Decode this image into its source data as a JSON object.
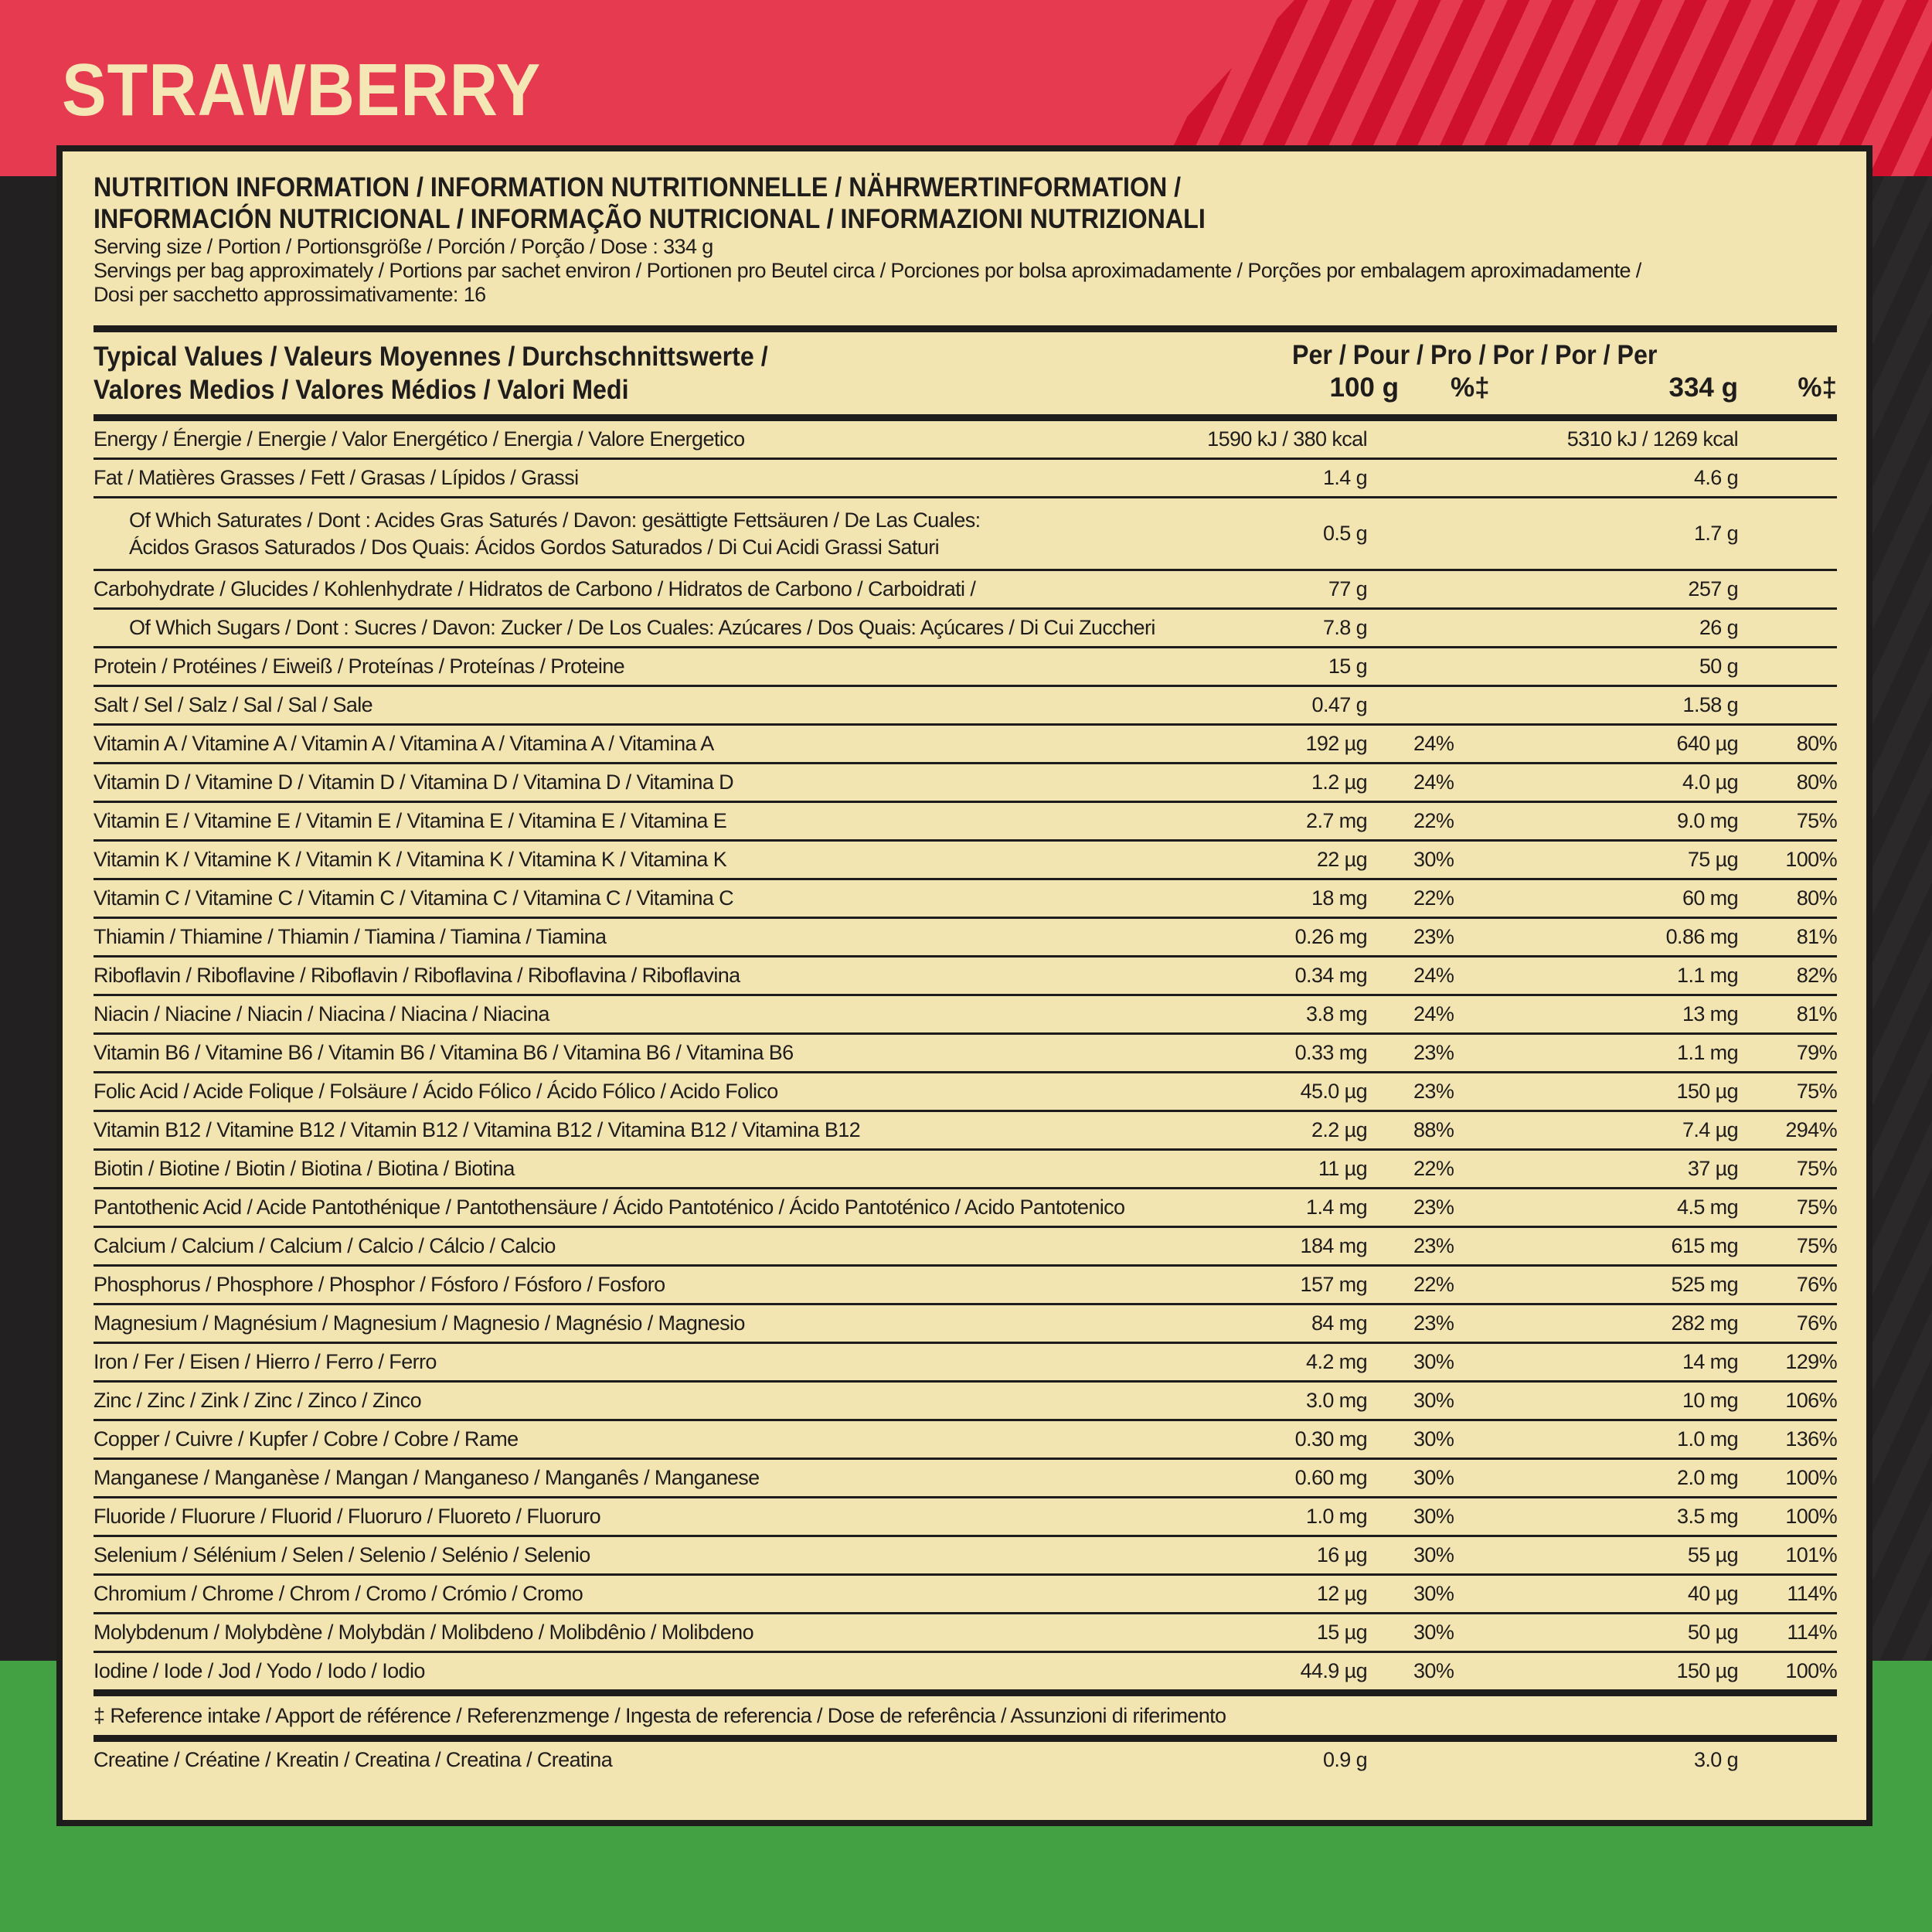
{
  "flavor": "STRAWBERRY",
  "colors": {
    "red": "#e63a50",
    "dark_red": "#cf112e",
    "dark": "#232021",
    "green": "#43a043",
    "cream": "#f3e5b2"
  },
  "title_line1": "NUTRITION INFORMATION / INFORMATION NUTRITIONNELLE / NÄHRWERTINFORMATION /",
  "title_line2": "INFORMACIÓN NUTRICIONAL / INFORMAÇÃO NUTRICIONAL / INFORMAZIONI NUTRIZIONALI",
  "serving_size": "Serving size / Portion / Portionsgröße / Porción / Porção / Dose : 334 g",
  "servings_line1": "Servings per bag approximately / Portions par sachet environ / Portionen pro Beutel circa / Porciones por bolsa aproximadamente / Porções por embalagem aproximadamente /",
  "servings_line2": "Dosi per sacchetto approssimativamente: 16",
  "header": {
    "typical_line1": "Typical Values / Valeurs Moyennes / Durchschnittswerte /",
    "typical_line2": "Valores Medios / Valores Médios / Valori Medi",
    "per": "Per / Pour / Pro / Por / Por / Per",
    "col1": "100 g",
    "col2": "%‡",
    "col3": "334 g",
    "col4": "%‡"
  },
  "energy": {
    "label": "Energy / Énergie / Energie / Valor Energético / Energia / Valore Energetico",
    "per100": "1590 kJ / 380 kcal",
    "per334": "5310 kJ / 1269 kcal"
  },
  "rows": [
    {
      "label": "Fat / Matières Grasses / Fett / Grasas / Lípidos / Grassi",
      "per100": "1.4 g",
      "pct100": "",
      "per334": "4.6 g",
      "pct334": ""
    },
    {
      "label": "Of Which Saturates / Dont : Acides Gras Saturés / Davon: gesättigte Fettsäuren / De Las Cuales:",
      "label2": "Ácidos Grasos Saturados / Dos Quais: Ácidos Gordos Saturados / Di Cui Acidi Grassi Saturi",
      "per100": "0.5 g",
      "pct100": "",
      "per334": "1.7 g",
      "pct334": "",
      "indent": true
    },
    {
      "label": "Carbohydrate / Glucides / Kohlenhydrate / Hidratos de Carbono / Hidratos de Carbono / Carboidrati /",
      "per100": "77 g",
      "pct100": "",
      "per334": "257 g",
      "pct334": ""
    },
    {
      "label": "Of Which Sugars / Dont : Sucres / Davon: Zucker / De Los Cuales: Azúcares / Dos Quais: Açúcares / Di Cui Zuccheri",
      "per100": "7.8 g",
      "pct100": "",
      "per334": "26 g",
      "pct334": "",
      "indent": true
    },
    {
      "label": "Protein / Protéines / Eiweiß / Proteínas / Proteínas / Proteine",
      "per100": "15 g",
      "pct100": "",
      "per334": "50 g",
      "pct334": ""
    },
    {
      "label": "Salt / Sel / Salz / Sal / Sal / Sale",
      "per100": "0.47 g",
      "pct100": "",
      "per334": "1.58 g",
      "pct334": ""
    },
    {
      "label": "Vitamin A / Vitamine A / Vitamin A / Vitamina A / Vitamina A / Vitamina A",
      "per100": "192 µg",
      "pct100": "24%",
      "per334": "640 µg",
      "pct334": "80%"
    },
    {
      "label": "Vitamin D / Vitamine D / Vitamin D / Vitamina D / Vitamina D / Vitamina D",
      "per100": "1.2 µg",
      "pct100": "24%",
      "per334": "4.0 µg",
      "pct334": "80%"
    },
    {
      "label": "Vitamin E / Vitamine E / Vitamin E / Vitamina E / Vitamina E / Vitamina E",
      "per100": "2.7 mg",
      "pct100": "22%",
      "per334": "9.0 mg",
      "pct334": "75%"
    },
    {
      "label": "Vitamin K / Vitamine K / Vitamin K / Vitamina K / Vitamina K / Vitamina K",
      "per100": "22 µg",
      "pct100": "30%",
      "per334": "75 µg",
      "pct334": "100%"
    },
    {
      "label": "Vitamin C / Vitamine C / Vitamin C / Vitamina C / Vitamina C / Vitamina C",
      "per100": "18 mg",
      "pct100": "22%",
      "per334": "60 mg",
      "pct334": "80%"
    },
    {
      "label": "Thiamin / Thiamine / Thiamin / Tiamina / Tiamina / Tiamina",
      "per100": "0.26 mg",
      "pct100": "23%",
      "per334": "0.86 mg",
      "pct334": "81%"
    },
    {
      "label": "Riboflavin / Riboflavine / Riboflavin / Riboflavina / Riboflavina / Riboflavina",
      "per100": "0.34 mg",
      "pct100": "24%",
      "per334": "1.1 mg",
      "pct334": "82%"
    },
    {
      "label": "Niacin / Niacine / Niacin / Niacina / Niacina / Niacina",
      "per100": "3.8 mg",
      "pct100": "24%",
      "per334": "13 mg",
      "pct334": "81%"
    },
    {
      "label": "Vitamin B6 / Vitamine B6 / Vitamin B6 / Vitamina B6 / Vitamina B6 / Vitamina B6",
      "per100": "0.33 mg",
      "pct100": "23%",
      "per334": "1.1 mg",
      "pct334": "79%"
    },
    {
      "label": "Folic Acid / Acide Folique / Folsäure / Ácido Fólico / Ácido Fólico / Acido Folico",
      "per100": "45.0 µg",
      "pct100": "23%",
      "per334": "150 µg",
      "pct334": "75%"
    },
    {
      "label": "Vitamin B12 / Vitamine B12 / Vitamin B12 / Vitamina B12 / Vitamina B12 / Vitamina B12",
      "per100": "2.2 µg",
      "pct100": "88%",
      "per334": "7.4 µg",
      "pct334": "294%"
    },
    {
      "label": "Biotin / Biotine / Biotin / Biotina / Biotina / Biotina",
      "per100": "11 µg",
      "pct100": "22%",
      "per334": "37 µg",
      "pct334": "75%"
    },
    {
      "label": "Pantothenic Acid / Acide Pantothénique / Pantothensäure / Ácido Pantoténico / Ácido Pantoténico / Acido Pantotenico",
      "per100": "1.4 mg",
      "pct100": "23%",
      "per334": "4.5 mg",
      "pct334": "75%"
    },
    {
      "label": "Calcium / Calcium / Calcium / Calcio / Cálcio / Calcio",
      "per100": "184 mg",
      "pct100": "23%",
      "per334": "615 mg",
      "pct334": "75%"
    },
    {
      "label": "Phosphorus / Phosphore / Phosphor / Fósforo / Fósforo / Fosforo",
      "per100": "157 mg",
      "pct100": "22%",
      "per334": "525 mg",
      "pct334": "76%"
    },
    {
      "label": "Magnesium / Magnésium / Magnesium / Magnesio / Magnésio / Magnesio",
      "per100": "84 mg",
      "pct100": "23%",
      "per334": "282 mg",
      "pct334": "76%"
    },
    {
      "label": "Iron / Fer / Eisen / Hierro / Ferro / Ferro",
      "per100": "4.2 mg",
      "pct100": "30%",
      "per334": "14 mg",
      "pct334": "129%"
    },
    {
      "label": "Zinc / Zinc / Zink / Zinc / Zinco / Zinco",
      "per100": "3.0 mg",
      "pct100": "30%",
      "per334": "10 mg",
      "pct334": "106%"
    },
    {
      "label": "Copper / Cuivre / Kupfer / Cobre / Cobre / Rame",
      "per100": "0.30 mg",
      "pct100": "30%",
      "per334": "1.0 mg",
      "pct334": "136%"
    },
    {
      "label": "Manganese / Manganèse / Mangan / Manganeso / Manganês / Manganese",
      "per100": "0.60 mg",
      "pct100": "30%",
      "per334": "2.0 mg",
      "pct334": "100%"
    },
    {
      "label": "Fluoride / Fluorure / Fluorid / Fluoruro / Fluoreto / Fluoruro",
      "per100": "1.0 mg",
      "pct100": "30%",
      "per334": "3.5 mg",
      "pct334": "100%"
    },
    {
      "label": "Selenium / Sélénium / Selen / Selenio / Selénio / Selenio",
      "per100": "16 µg",
      "pct100": "30%",
      "per334": "55 µg",
      "pct334": "101%"
    },
    {
      "label": "Chromium / Chrome / Chrom / Cromo / Crómio / Cromo",
      "per100": "12 µg",
      "pct100": "30%",
      "per334": "40 µg",
      "pct334": "114%"
    },
    {
      "label": "Molybdenum / Molybdène / Molybdän / Molibdeno / Molibdênio / Molibdeno",
      "per100": "15 µg",
      "pct100": "30%",
      "per334": "50 µg",
      "pct334": "114%"
    },
    {
      "label": "Iodine / Iode / Jod / Yodo / Iodo / Iodio",
      "per100": "44.9 µg",
      "pct100": "30%",
      "per334": "150 µg",
      "pct334": "100%"
    }
  ],
  "footnote": "‡ Reference intake / Apport de référence / Referenzmenge / Ingesta de referencia / Dose de referência / Assunzioni di riferimento",
  "creatine": {
    "label": "Creatine / Créatine / Kreatin / Creatina / Creatina / Creatina",
    "per100": "0.9 g",
    "per334": "3.0 g"
  }
}
